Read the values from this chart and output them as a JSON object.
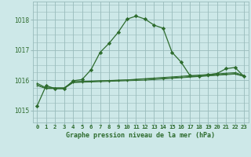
{
  "xlabel": "Graphe pression niveau de la mer (hPa)",
  "background_color": "#cde8e8",
  "grid_color": "#99bbbb",
  "line_color": "#2d6b2d",
  "marker_color": "#2d6b2d",
  "ylim": [
    1014.6,
    1018.6
  ],
  "yticks": [
    1015,
    1016,
    1017,
    1018
  ],
  "xlim": [
    -0.5,
    23.5
  ],
  "xtick_labels": [
    "0",
    "1",
    "2",
    "3",
    "4",
    "5",
    "6",
    "7",
    "8",
    "9",
    "10",
    "11",
    "12",
    "13",
    "14",
    "15",
    "16",
    "17",
    "18",
    "19",
    "20",
    "21",
    "22",
    "23"
  ],
  "series1_x": [
    0,
    1,
    2,
    3,
    4,
    5,
    6,
    7,
    8,
    9,
    10,
    11,
    12,
    13,
    14,
    15,
    16,
    17,
    18,
    19,
    20,
    21,
    22,
    23
  ],
  "series1_y": [
    1015.15,
    1015.82,
    1015.72,
    1015.72,
    1015.98,
    1016.02,
    1016.35,
    1016.92,
    1017.22,
    1017.58,
    1018.02,
    1018.12,
    1018.02,
    1017.82,
    1017.72,
    1016.92,
    1016.6,
    1016.15,
    1016.12,
    1016.18,
    1016.22,
    1016.38,
    1016.42,
    1016.12
  ],
  "series2_x": [
    0,
    1,
    2,
    3,
    4,
    5,
    6,
    7,
    8,
    9,
    10,
    11,
    12,
    13,
    14,
    15,
    16,
    17,
    18,
    19,
    20,
    21,
    22,
    23
  ],
  "series2_y": [
    1015.82,
    1015.72,
    1015.72,
    1015.72,
    1015.92,
    1015.93,
    1015.94,
    1015.95,
    1015.96,
    1015.97,
    1015.98,
    1015.99,
    1016.0,
    1016.02,
    1016.04,
    1016.06,
    1016.08,
    1016.1,
    1016.12,
    1016.14,
    1016.16,
    1016.18,
    1016.2,
    1016.12
  ],
  "series3_x": [
    0,
    1,
    2,
    3,
    4,
    5,
    6,
    7,
    8,
    9,
    10,
    11,
    12,
    13,
    14,
    15,
    16,
    17,
    18,
    19,
    20,
    21,
    22,
    23
  ],
  "series3_y": [
    1015.9,
    1015.75,
    1015.75,
    1015.75,
    1015.95,
    1015.96,
    1015.97,
    1015.98,
    1015.99,
    1016.0,
    1016.01,
    1016.03,
    1016.05,
    1016.07,
    1016.09,
    1016.11,
    1016.13,
    1016.15,
    1016.17,
    1016.19,
    1016.21,
    1016.23,
    1016.25,
    1016.16
  ],
  "series4_x": [
    0,
    1,
    2,
    3,
    4,
    5,
    6,
    7,
    8,
    9,
    10,
    11,
    12,
    13,
    14,
    15,
    16,
    17,
    18,
    19,
    20,
    21,
    22,
    23
  ],
  "series4_y": [
    1015.86,
    1015.73,
    1015.73,
    1015.73,
    1015.93,
    1015.945,
    1015.96,
    1015.975,
    1015.985,
    1015.995,
    1016.005,
    1016.02,
    1016.035,
    1016.05,
    1016.065,
    1016.085,
    1016.1,
    1016.12,
    1016.14,
    1016.16,
    1016.18,
    1016.2,
    1016.22,
    1016.14
  ]
}
